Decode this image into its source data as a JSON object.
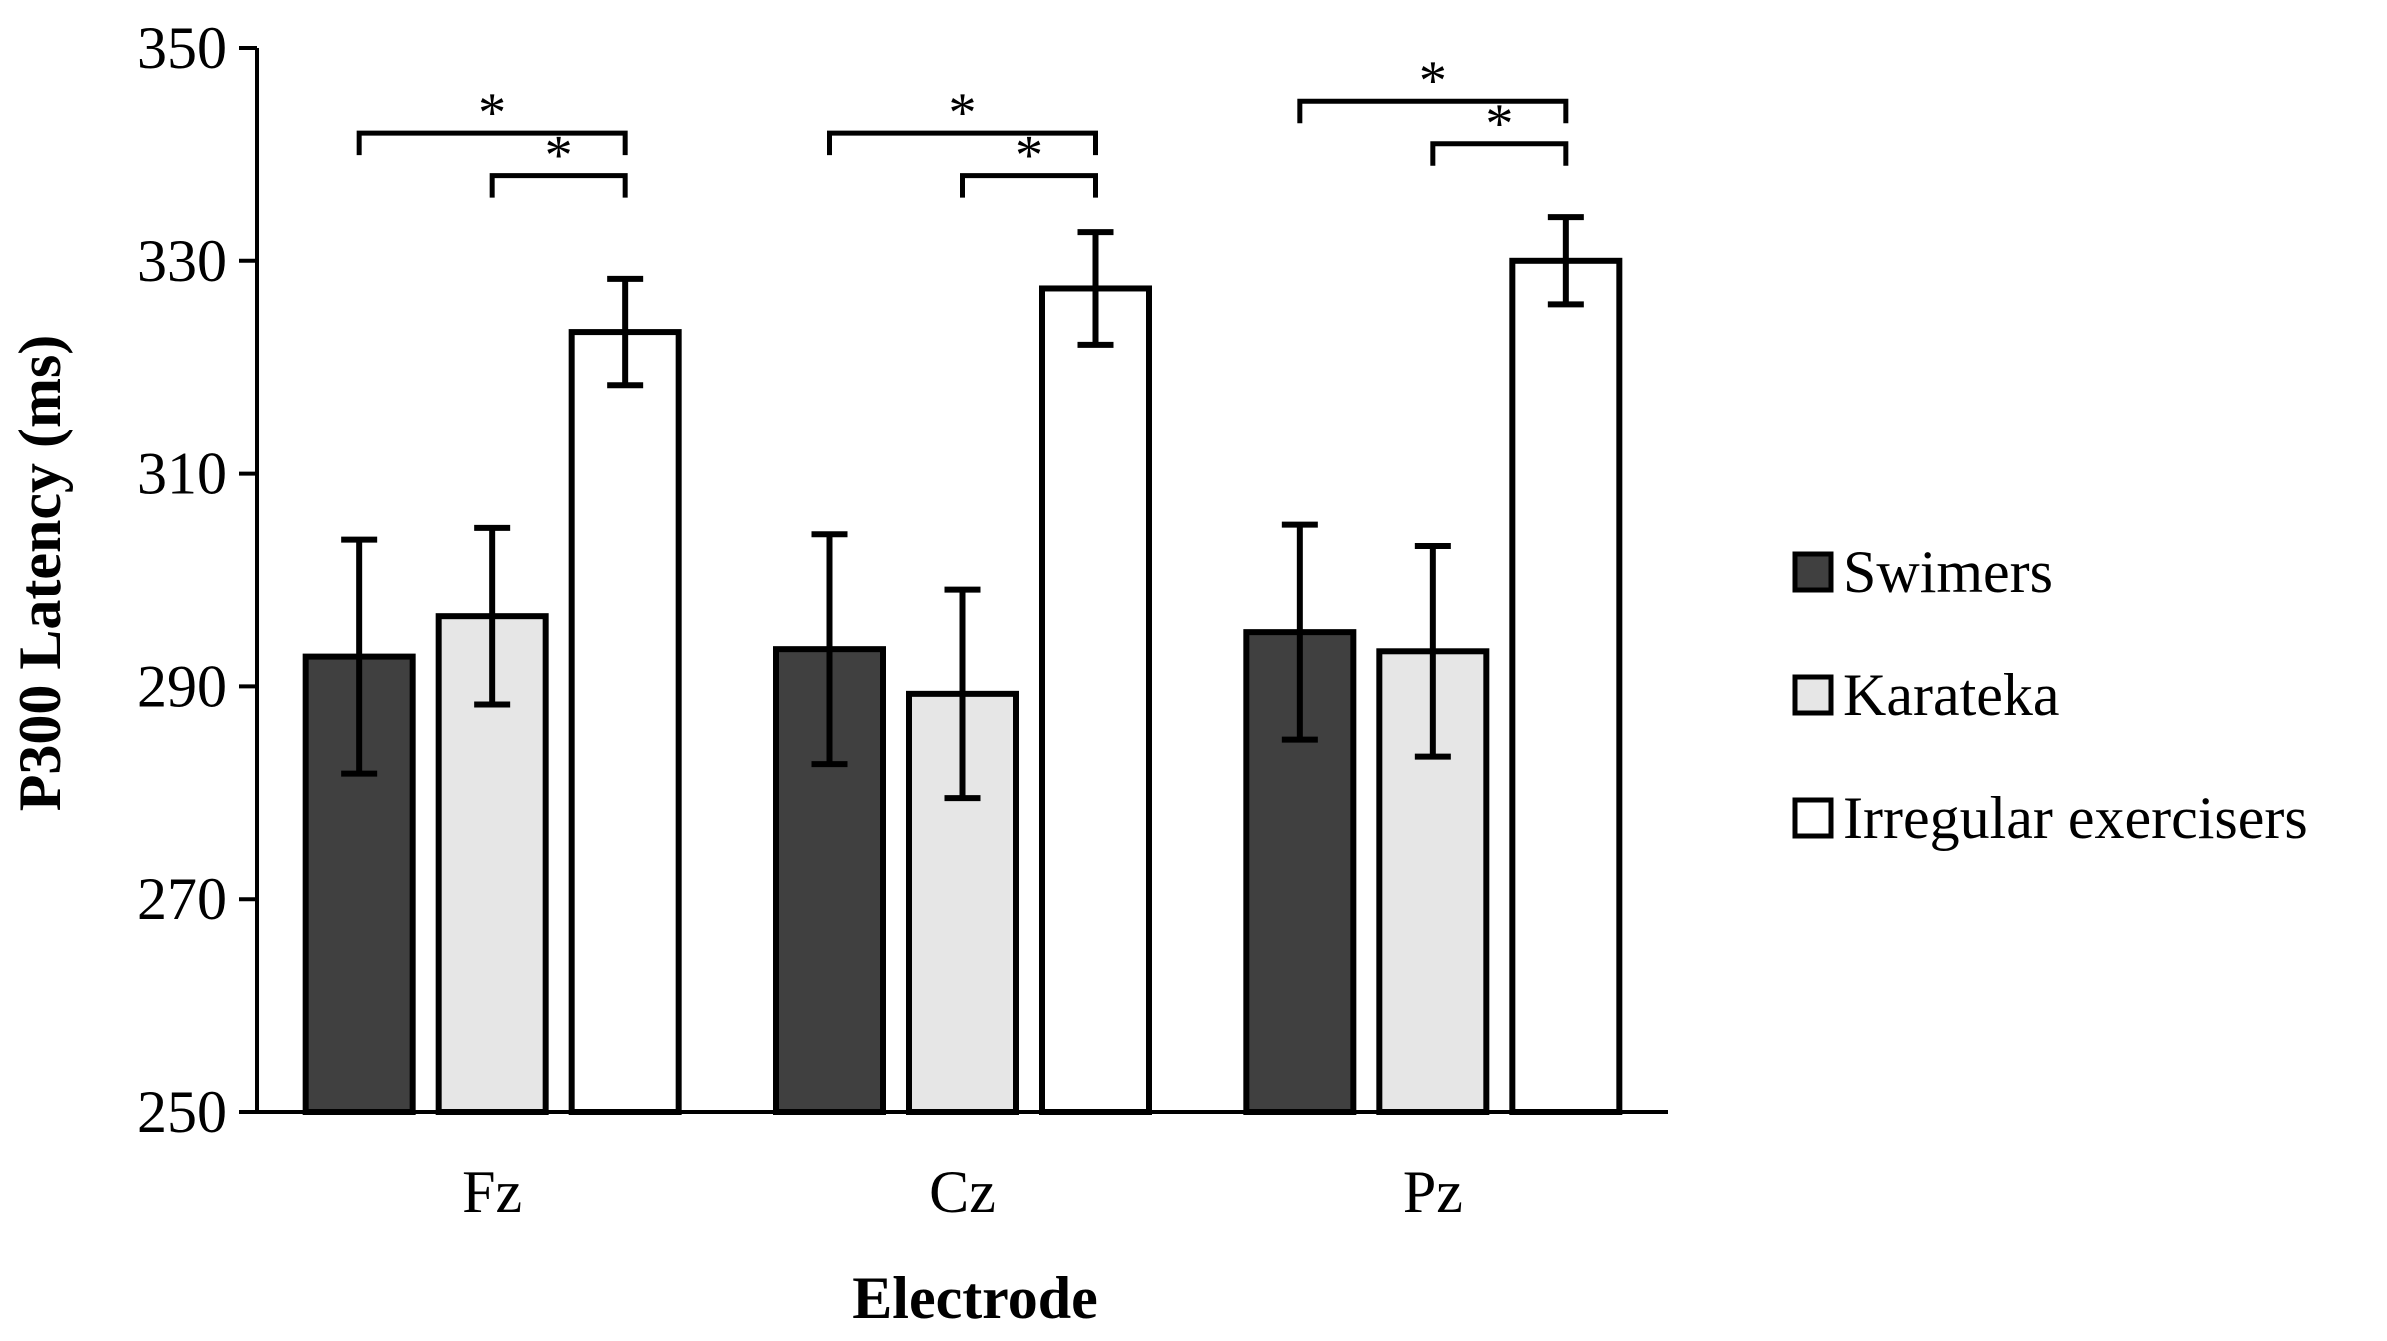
{
  "chart_data": {
    "type": "bar",
    "title": "",
    "xlabel": "Electrode",
    "ylabel": "P300 Latency (ms)",
    "ylim": [
      250,
      350
    ],
    "yticks": [
      250,
      270,
      290,
      310,
      330,
      350
    ],
    "categories": [
      "Fz",
      "Cz",
      "Pz"
    ],
    "series": [
      {
        "name": "Swimers",
        "color": "#404040",
        "values": [
          292.8,
          293.5,
          295.1
        ],
        "errors": [
          11.0,
          10.8,
          10.1
        ]
      },
      {
        "name": "Karateka",
        "color": "#e6e6e6",
        "values": [
          296.6,
          289.3,
          293.3
        ],
        "errors": [
          8.3,
          9.8,
          9.9
        ]
      },
      {
        "name": "Irregular exercisers",
        "color": "#ffffff",
        "values": [
          323.3,
          327.4,
          330.0
        ],
        "errors": [
          5.0,
          5.3,
          4.1
        ]
      }
    ],
    "significance": [
      {
        "category": "Fz",
        "from_series": 0,
        "to_series": 2,
        "level": 342,
        "label": "*"
      },
      {
        "category": "Fz",
        "from_series": 1,
        "to_series": 2,
        "level": 338,
        "label": "*"
      },
      {
        "category": "Cz",
        "from_series": 0,
        "to_series": 2,
        "level": 342,
        "label": "*"
      },
      {
        "category": "Cz",
        "from_series": 1,
        "to_series": 2,
        "level": 338,
        "label": "*"
      },
      {
        "category": "Pz",
        "from_series": 0,
        "to_series": 2,
        "level": 345,
        "label": "*"
      },
      {
        "category": "Pz",
        "from_series": 1,
        "to_series": 2,
        "level": 341,
        "label": "*"
      }
    ],
    "legend_position": "right"
  }
}
